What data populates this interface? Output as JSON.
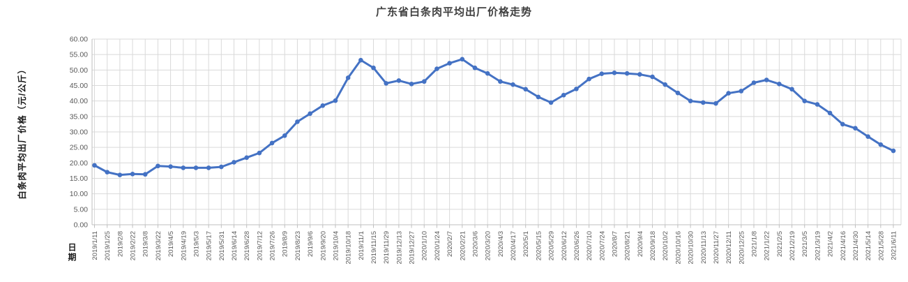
{
  "chart_data": {
    "type": "line",
    "title": "广东省白条肉平均出厂价格走势",
    "xlabel": "日期",
    "ylabel": "白条肉平均出厂价格（元/公斤）",
    "ylim": [
      0,
      60
    ],
    "ytick_step": 5,
    "ytick_decimals": 2,
    "grid": true,
    "legend_position": "none",
    "categories": [
      "2019/1/11",
      "2019/1/25",
      "2019/2/8",
      "2019/2/22",
      "2019/3/8",
      "2019/3/22",
      "2019/4/5",
      "2019/4/19",
      "2019/5/3",
      "2019/5/17",
      "2019/5/31",
      "2019/6/14",
      "2019/6/28",
      "2019/7/12",
      "2019/7/26",
      "2019/8/9",
      "2019/8/23",
      "2019/9/6",
      "2019/9/20",
      "2019/10/4",
      "2019/10/18",
      "2019/11/1",
      "2019/11/15",
      "2019/11/29",
      "2019/12/13",
      "2019/12/27",
      "2020/1/10",
      "2020/1/24",
      "2020/2/7",
      "2020/2/21",
      "2020/3/6",
      "2020/3/20",
      "2020/4/3",
      "2020/4/17",
      "2020/5/1",
      "2020/5/15",
      "2020/5/29",
      "2020/6/12",
      "2020/6/26",
      "2020/7/10",
      "2020/7/24",
      "2020/8/7",
      "2020/8/21",
      "2020/9/4",
      "2020/9/18",
      "2020/10/2",
      "2020/10/16",
      "2020/10/30",
      "2020/11/13",
      "2020/11/27",
      "2020/12/11",
      "2020/12/25",
      "2021/1/8",
      "2021/1/22",
      "2021/2/5",
      "2021/2/19",
      "2021/3/5",
      "2021/3/19",
      "2021/4/2",
      "2021/4/16",
      "2021/4/30",
      "2021/5/14",
      "2021/5/28",
      "2021/6/11"
    ],
    "values": [
      19.2,
      17.0,
      16.1,
      16.4,
      16.3,
      19.0,
      18.8,
      18.4,
      18.4,
      18.4,
      18.7,
      20.2,
      21.7,
      23.2,
      26.4,
      28.8,
      33.3,
      35.9,
      38.5,
      40.1,
      47.5,
      53.2,
      50.7,
      45.7,
      46.6,
      45.5,
      46.3,
      50.4,
      52.2,
      53.5,
      50.7,
      48.9,
      46.3,
      45.3,
      43.8,
      41.3,
      39.5,
      41.9,
      43.9,
      47.1,
      48.8,
      49.1,
      48.9,
      48.6,
      47.8,
      45.3,
      42.6,
      40.0,
      39.5,
      39.2,
      42.5,
      43.2,
      45.9,
      46.8,
      45.5,
      43.8,
      40.0,
      38.9,
      36.1,
      32.5,
      31.2,
      28.5,
      25.9,
      23.9
    ],
    "colors": {
      "series": "#4472C4",
      "gridline": "#d9d9d9",
      "axis_line": "#bfbfbf",
      "tick_label": "#595959",
      "title_text": "#3f3f3f",
      "axis_title_text": "#1a1a1a"
    }
  }
}
